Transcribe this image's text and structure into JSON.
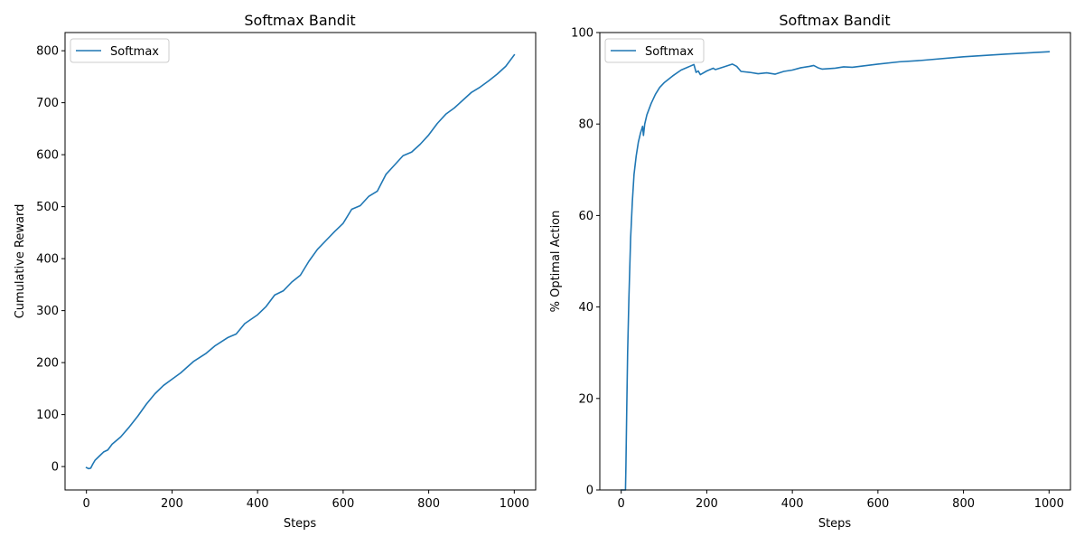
{
  "colors": {
    "series": "#1f77b4"
  },
  "chart_data": [
    {
      "type": "line",
      "title": "Softmax Bandit",
      "xlabel": "Steps",
      "ylabel": "Cumulative Reward",
      "xlim": [
        -50,
        1050
      ],
      "ylim": [
        -45,
        835
      ],
      "xticks": [
        0,
        200,
        400,
        600,
        800,
        1000
      ],
      "yticks": [
        0,
        100,
        200,
        300,
        400,
        500,
        600,
        700,
        800
      ],
      "legend": "upper left",
      "grid": false,
      "series": [
        {
          "name": "Softmax",
          "x": [
            0,
            5,
            10,
            15,
            20,
            30,
            40,
            50,
            60,
            80,
            100,
            120,
            140,
            160,
            180,
            200,
            220,
            250,
            280,
            300,
            330,
            350,
            370,
            400,
            420,
            440,
            460,
            480,
            500,
            520,
            540,
            560,
            580,
            600,
            620,
            640,
            660,
            680,
            700,
            720,
            740,
            760,
            780,
            800,
            820,
            840,
            860,
            880,
            900,
            920,
            940,
            960,
            980,
            1000
          ],
          "values": [
            -2,
            -4,
            -3,
            5,
            12,
            20,
            28,
            32,
            43,
            57,
            76,
            97,
            120,
            140,
            156,
            168,
            180,
            202,
            218,
            232,
            248,
            255,
            275,
            292,
            308,
            330,
            338,
            355,
            368,
            395,
            418,
            435,
            452,
            468,
            495,
            502,
            520,
            530,
            562,
            580,
            598,
            605,
            620,
            638,
            660,
            678,
            690,
            705,
            720,
            730,
            742,
            755,
            770,
            792
          ]
        }
      ]
    },
    {
      "type": "line",
      "title": "Softmax Bandit",
      "xlabel": "Steps",
      "ylabel": "% Optimal Action",
      "xlim": [
        -50,
        1050
      ],
      "ylim": [
        0,
        100
      ],
      "xticks": [
        0,
        200,
        400,
        600,
        800,
        1000
      ],
      "yticks": [
        0,
        20,
        40,
        60,
        80,
        100
      ],
      "legend": "upper left",
      "grid": false,
      "series": [
        {
          "name": "Softmax",
          "x": [
            0,
            10,
            11,
            13,
            15,
            18,
            22,
            26,
            30,
            35,
            40,
            45,
            50,
            52,
            55,
            60,
            70,
            80,
            90,
            100,
            120,
            140,
            160,
            170,
            175,
            180,
            185,
            200,
            215,
            220,
            240,
            260,
            270,
            280,
            300,
            320,
            340,
            360,
            380,
            400,
            420,
            440,
            450,
            460,
            470,
            500,
            520,
            540,
            600,
            650,
            700,
            800,
            900,
            1000
          ],
          "values": [
            0,
            0,
            5,
            18,
            30,
            42,
            55,
            63,
            69,
            73,
            76,
            78,
            79.5,
            77.5,
            80,
            82,
            84.5,
            86.5,
            88,
            89,
            90.5,
            91.8,
            92.6,
            93,
            91.3,
            91.6,
            90.8,
            91.6,
            92.2,
            91.9,
            92.5,
            93.1,
            92.6,
            91.5,
            91.3,
            91.0,
            91.2,
            90.9,
            91.5,
            91.8,
            92.3,
            92.6,
            92.8,
            92.3,
            92.0,
            92.2,
            92.5,
            92.4,
            93.1,
            93.6,
            93.9,
            94.7,
            95.3,
            95.8
          ]
        }
      ]
    }
  ]
}
